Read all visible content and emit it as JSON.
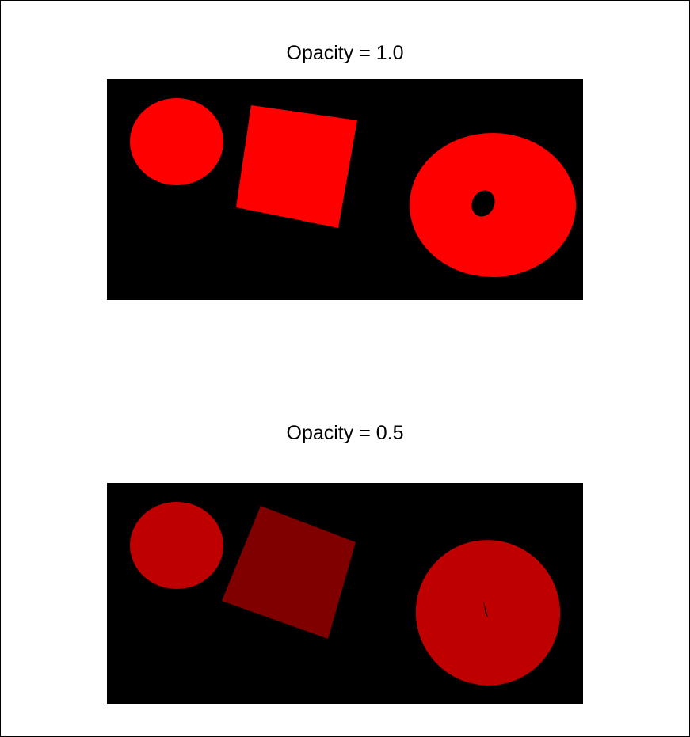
{
  "panels": [
    {
      "title": "Opacity = 1.0",
      "opacity": 1.0,
      "background": "#000000",
      "circle_color": "#ff0000",
      "square_color": "#ff0000",
      "ring_color": "#ff0000",
      "hole_color": "#000000"
    },
    {
      "title": "Opacity = 0.5",
      "opacity": 0.5,
      "background": "#000000",
      "circle_color": "#bf0000",
      "square_color": "#800000",
      "ring_color": "#bf0000",
      "hole_color": "#000000"
    }
  ]
}
